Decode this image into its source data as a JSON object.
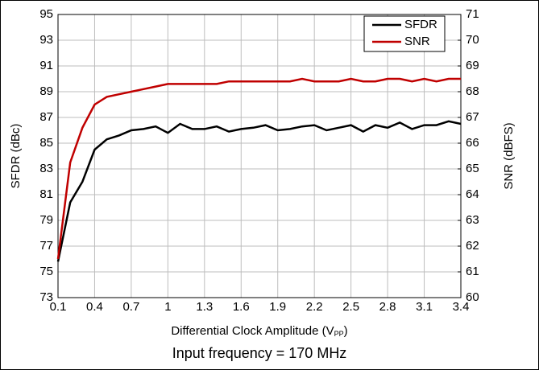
{
  "chart_data": {
    "type": "line",
    "x_label": [
      "Differential Clock Amplitude (V",
      "PP",
      ")"
    ],
    "y_label": "SFDR (dBc)",
    "y2_label": "SNR (dBFS)",
    "caption": "Input frequency = 170 MHz",
    "x": [
      0.1,
      0.2,
      0.3,
      0.4,
      0.5,
      0.6,
      0.7,
      0.8,
      0.9,
      1.0,
      1.1,
      1.2,
      1.3,
      1.4,
      1.5,
      1.6,
      1.7,
      1.8,
      1.9,
      2.0,
      2.1,
      2.2,
      2.3,
      2.4,
      2.5,
      2.6,
      2.7,
      2.8,
      2.9,
      3.0,
      3.1,
      3.2,
      3.3,
      3.4
    ],
    "xlim": [
      0.1,
      3.4
    ],
    "xticks": [
      0.1,
      0.4,
      0.7,
      1,
      1.3,
      1.6,
      1.9,
      2.2,
      2.5,
      2.8,
      3.1,
      3.4
    ],
    "ylim": [
      73,
      95
    ],
    "yticks": [
      73,
      75,
      77,
      79,
      81,
      83,
      85,
      87,
      89,
      91,
      93,
      95
    ],
    "y2lim": [
      60,
      71
    ],
    "y2ticks": [
      60,
      61,
      62,
      63,
      64,
      65,
      66,
      67,
      68,
      69,
      70,
      71
    ],
    "grid": true,
    "legend": "upper right",
    "series": [
      {
        "name": "SFDR",
        "color": "#000000",
        "axis": "y",
        "values": [
          75.8,
          80.4,
          82,
          84.5,
          85.3,
          85.6,
          86.0,
          86.1,
          86.3,
          85.8,
          86.5,
          86.1,
          86.1,
          86.3,
          85.9,
          86.1,
          86.2,
          86.4,
          86.0,
          86.1,
          86.3,
          86.4,
          86.0,
          86.2,
          86.4,
          85.9,
          86.4,
          86.2,
          86.6,
          86.1,
          86.4,
          86.4,
          86.7,
          86.5
        ]
      },
      {
        "name": "SNR",
        "color": "#c00000",
        "axis": "y2",
        "values": [
          61.5,
          65.25,
          66.6,
          67.5,
          67.8,
          67.9,
          68.0,
          68.1,
          68.2,
          68.3,
          68.3,
          68.3,
          68.3,
          68.3,
          68.4,
          68.4,
          68.4,
          68.4,
          68.4,
          68.4,
          68.5,
          68.4,
          68.4,
          68.4,
          68.5,
          68.4,
          68.4,
          68.5,
          68.5,
          68.4,
          68.5,
          68.4,
          68.5,
          68.5
        ]
      }
    ]
  }
}
